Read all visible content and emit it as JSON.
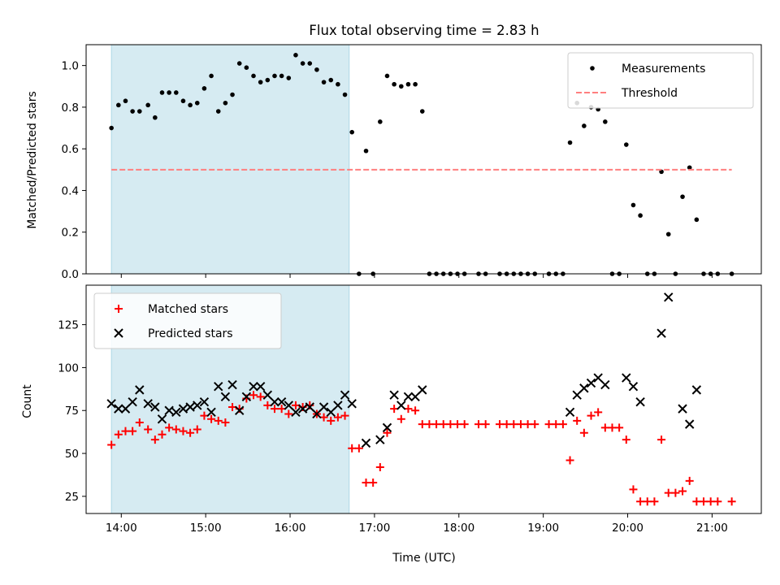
{
  "chart_data": [
    {
      "type": "scatter",
      "title": "Flux total observing time = 2.83 h",
      "xlabel": "",
      "ylabel": "Matched/Predicted stars",
      "ylim": [
        0,
        1.1
      ],
      "xlim": [
        "13:35",
        "21:35"
      ],
      "yticks": [
        "0.0",
        "0.2",
        "0.4",
        "0.6",
        "0.8",
        "1.0"
      ],
      "legend_position": "top-right",
      "shaded_interval": [
        "13:53",
        "16:42"
      ],
      "series": [
        {
          "name": "Measurements",
          "marker": "dot",
          "color": "#000000",
          "points": [
            [
              "13:53",
              0.7
            ],
            [
              "13:58",
              0.81
            ],
            [
              "14:03",
              0.83
            ],
            [
              "14:08",
              0.78
            ],
            [
              "14:13",
              0.78
            ],
            [
              "14:19",
              0.81
            ],
            [
              "14:24",
              0.75
            ],
            [
              "14:29",
              0.87
            ],
            [
              "14:34",
              0.87
            ],
            [
              "14:39",
              0.87
            ],
            [
              "14:44",
              0.83
            ],
            [
              "14:49",
              0.81
            ],
            [
              "14:54",
              0.82
            ],
            [
              "14:59",
              0.89
            ],
            [
              "15:04",
              0.95
            ],
            [
              "15:09",
              0.78
            ],
            [
              "15:14",
              0.82
            ],
            [
              "15:19",
              0.86
            ],
            [
              "15:24",
              1.01
            ],
            [
              "15:29",
              0.99
            ],
            [
              "15:34",
              0.95
            ],
            [
              "15:39",
              0.92
            ],
            [
              "15:44",
              0.93
            ],
            [
              "15:49",
              0.95
            ],
            [
              "15:54",
              0.95
            ],
            [
              "15:59",
              0.94
            ],
            [
              "16:04",
              1.05
            ],
            [
              "16:09",
              1.01
            ],
            [
              "16:14",
              1.01
            ],
            [
              "16:19",
              0.98
            ],
            [
              "16:24",
              0.92
            ],
            [
              "16:29",
              0.93
            ],
            [
              "16:34",
              0.91
            ],
            [
              "16:39",
              0.86
            ],
            [
              "16:44",
              0.68
            ],
            [
              "16:49",
              0.0
            ],
            [
              "16:54",
              0.59
            ],
            [
              "16:59",
              0.0
            ],
            [
              "17:04",
              0.73
            ],
            [
              "17:09",
              0.95
            ],
            [
              "17:14",
              0.91
            ],
            [
              "17:19",
              0.9
            ],
            [
              "17:24",
              0.91
            ],
            [
              "17:29",
              0.91
            ],
            [
              "17:34",
              0.78
            ],
            [
              "17:39",
              0.0
            ],
            [
              "17:44",
              0.0
            ],
            [
              "17:49",
              0.0
            ],
            [
              "17:54",
              0.0
            ],
            [
              "17:59",
              0.0
            ],
            [
              "18:04",
              0.0
            ],
            [
              "18:14",
              0.0
            ],
            [
              "18:19",
              0.0
            ],
            [
              "18:29",
              0.0
            ],
            [
              "18:34",
              0.0
            ],
            [
              "18:39",
              0.0
            ],
            [
              "18:44",
              0.0
            ],
            [
              "18:49",
              0.0
            ],
            [
              "18:54",
              0.0
            ],
            [
              "19:04",
              0.0
            ],
            [
              "19:09",
              0.0
            ],
            [
              "19:14",
              0.0
            ],
            [
              "19:19",
              0.63
            ],
            [
              "19:24",
              0.82
            ],
            [
              "19:29",
              0.71
            ],
            [
              "19:34",
              0.8
            ],
            [
              "19:39",
              0.79
            ],
            [
              "19:44",
              0.73
            ],
            [
              "19:49",
              0.0
            ],
            [
              "19:54",
              0.0
            ],
            [
              "19:59",
              0.62
            ],
            [
              "20:04",
              0.33
            ],
            [
              "20:09",
              0.28
            ],
            [
              "20:14",
              0.0
            ],
            [
              "20:19",
              0.0
            ],
            [
              "20:24",
              0.49
            ],
            [
              "20:29",
              0.19
            ],
            [
              "20:34",
              0.0
            ],
            [
              "20:39",
              0.37
            ],
            [
              "20:44",
              0.51
            ],
            [
              "20:49",
              0.26
            ],
            [
              "20:54",
              0.0
            ],
            [
              "20:59",
              0.0
            ],
            [
              "21:04",
              0.0
            ],
            [
              "21:14",
              0.0
            ]
          ]
        },
        {
          "name": "Threshold",
          "type": "line",
          "style": "dashed",
          "color": "#ff7f7f",
          "points": [
            [
              "13:53",
              0.5
            ],
            [
              "21:14",
              0.5
            ]
          ]
        }
      ]
    },
    {
      "type": "scatter",
      "title": "",
      "xlabel": "Time (UTC)",
      "ylabel": "Count",
      "ylim": [
        15,
        148
      ],
      "xlim": [
        "13:35",
        "21:35"
      ],
      "xticks": [
        "14:00",
        "15:00",
        "16:00",
        "17:00",
        "18:00",
        "19:00",
        "20:00",
        "21:00"
      ],
      "yticks": [
        "25",
        "50",
        "75",
        "100",
        "125"
      ],
      "legend_position": "top-left",
      "shaded_interval": [
        "13:53",
        "16:42"
      ],
      "series": [
        {
          "name": "Matched stars",
          "marker": "plus",
          "color": "#ff0000",
          "points": [
            [
              "13:53",
              55
            ],
            [
              "13:58",
              61
            ],
            [
              "14:03",
              63
            ],
            [
              "14:08",
              63
            ],
            [
              "14:13",
              68
            ],
            [
              "14:19",
              64
            ],
            [
              "14:24",
              58
            ],
            [
              "14:29",
              61
            ],
            [
              "14:34",
              65
            ],
            [
              "14:39",
              64
            ],
            [
              "14:44",
              63
            ],
            [
              "14:49",
              62
            ],
            [
              "14:54",
              64
            ],
            [
              "14:59",
              72
            ],
            [
              "15:04",
              70
            ],
            [
              "15:09",
              69
            ],
            [
              "15:14",
              68
            ],
            [
              "15:19",
              77
            ],
            [
              "15:24",
              76
            ],
            [
              "15:29",
              82
            ],
            [
              "15:34",
              84
            ],
            [
              "15:39",
              83
            ],
            [
              "15:44",
              78
            ],
            [
              "15:49",
              76
            ],
            [
              "15:54",
              76
            ],
            [
              "15:59",
              73
            ],
            [
              "16:04",
              78
            ],
            [
              "16:09",
              77
            ],
            [
              "16:14",
              78
            ],
            [
              "16:19",
              73
            ],
            [
              "16:24",
              71
            ],
            [
              "16:29",
              69
            ],
            [
              "16:34",
              71
            ],
            [
              "16:39",
              72
            ],
            [
              "16:44",
              53
            ],
            [
              "16:49",
              53
            ],
            [
              "16:54",
              33
            ],
            [
              "16:59",
              33
            ],
            [
              "17:04",
              42
            ],
            [
              "17:09",
              62
            ],
            [
              "17:14",
              76
            ],
            [
              "17:19",
              70
            ],
            [
              "17:24",
              76
            ],
            [
              "17:29",
              75
            ],
            [
              "17:34",
              67
            ],
            [
              "17:39",
              67
            ],
            [
              "17:44",
              67
            ],
            [
              "17:49",
              67
            ],
            [
              "17:54",
              67
            ],
            [
              "17:59",
              67
            ],
            [
              "18:04",
              67
            ],
            [
              "18:14",
              67
            ],
            [
              "18:19",
              67
            ],
            [
              "18:29",
              67
            ],
            [
              "18:34",
              67
            ],
            [
              "18:39",
              67
            ],
            [
              "18:44",
              67
            ],
            [
              "18:49",
              67
            ],
            [
              "18:54",
              67
            ],
            [
              "19:04",
              67
            ],
            [
              "19:09",
              67
            ],
            [
              "19:14",
              67
            ],
            [
              "19:19",
              46
            ],
            [
              "19:24",
              69
            ],
            [
              "19:29",
              62
            ],
            [
              "19:34",
              72
            ],
            [
              "19:39",
              74
            ],
            [
              "19:44",
              65
            ],
            [
              "19:49",
              65
            ],
            [
              "19:54",
              65
            ],
            [
              "19:59",
              58
            ],
            [
              "20:04",
              29
            ],
            [
              "20:09",
              22
            ],
            [
              "20:14",
              22
            ],
            [
              "20:19",
              22
            ],
            [
              "20:24",
              58
            ],
            [
              "20:29",
              27
            ],
            [
              "20:34",
              27
            ],
            [
              "20:39",
              28
            ],
            [
              "20:44",
              34
            ],
            [
              "20:49",
              22
            ],
            [
              "20:54",
              22
            ],
            [
              "20:59",
              22
            ],
            [
              "21:04",
              22
            ],
            [
              "21:14",
              22
            ]
          ]
        },
        {
          "name": "Predicted stars",
          "marker": "x",
          "color": "#000000",
          "points": [
            [
              "13:53",
              79
            ],
            [
              "13:58",
              76
            ],
            [
              "14:03",
              76
            ],
            [
              "14:08",
              80
            ],
            [
              "14:13",
              87
            ],
            [
              "14:19",
              79
            ],
            [
              "14:24",
              77
            ],
            [
              "14:29",
              70
            ],
            [
              "14:34",
              75
            ],
            [
              "14:39",
              74
            ],
            [
              "14:44",
              76
            ],
            [
              "14:49",
              77
            ],
            [
              "14:54",
              78
            ],
            [
              "14:59",
              80
            ],
            [
              "15:04",
              74
            ],
            [
              "15:09",
              89
            ],
            [
              "15:14",
              83
            ],
            [
              "15:19",
              90
            ],
            [
              "15:24",
              75
            ],
            [
              "15:29",
              83
            ],
            [
              "15:34",
              89
            ],
            [
              "15:39",
              89
            ],
            [
              "15:44",
              84
            ],
            [
              "15:49",
              80
            ],
            [
              "15:54",
              80
            ],
            [
              "15:59",
              78
            ],
            [
              "16:04",
              74
            ],
            [
              "16:09",
              76
            ],
            [
              "16:14",
              77
            ],
            [
              "16:19",
              73
            ],
            [
              "16:24",
              77
            ],
            [
              "16:29",
              74
            ],
            [
              "16:34",
              78
            ],
            [
              "16:39",
              84
            ],
            [
              "16:44",
              79
            ],
            [
              "16:54",
              56
            ],
            [
              "17:04",
              58
            ],
            [
              "17:09",
              65
            ],
            [
              "17:14",
              84
            ],
            [
              "17:19",
              78
            ],
            [
              "17:24",
              83
            ],
            [
              "17:29",
              83
            ],
            [
              "17:34",
              87
            ],
            [
              "19:19",
              74
            ],
            [
              "19:24",
              84
            ],
            [
              "19:29",
              88
            ],
            [
              "19:34",
              91
            ],
            [
              "19:39",
              94
            ],
            [
              "19:44",
              90
            ],
            [
              "19:59",
              94
            ],
            [
              "20:04",
              89
            ],
            [
              "20:09",
              80
            ],
            [
              "20:24",
              120
            ],
            [
              "20:29",
              141
            ],
            [
              "20:39",
              76
            ],
            [
              "20:44",
              67
            ],
            [
              "20:49",
              87
            ]
          ]
        }
      ]
    }
  ]
}
